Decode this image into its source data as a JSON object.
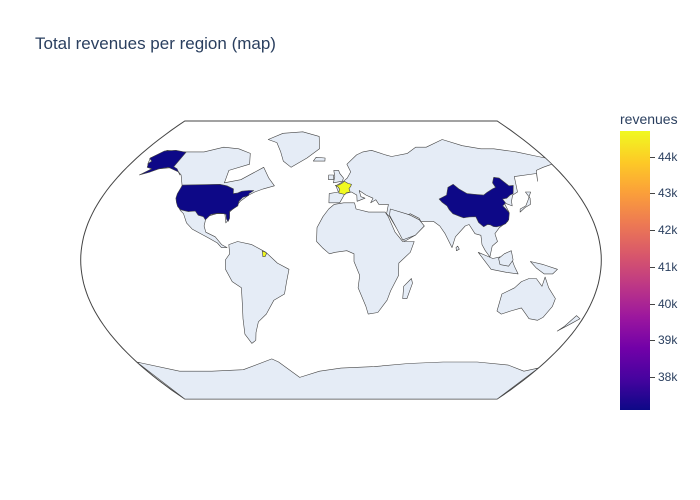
{
  "title": "Total revenues per region (map)",
  "chart_data": {
    "type": "choropleth",
    "title": "Total revenues per region (map)",
    "projection": "natural earth",
    "value_field": "revenues",
    "colorscale": "plasma",
    "colorscale_stops": [
      "#0d0887",
      "#46039f",
      "#7201a8",
      "#9c179e",
      "#bd3786",
      "#d8576b",
      "#ed7953",
      "#fb9f3a",
      "#fdca26",
      "#f0f921"
    ],
    "range": [
      37100,
      44700
    ],
    "regions": [
      {
        "region": "United States",
        "revenues": 37100
      },
      {
        "region": "China",
        "revenues": 37100
      },
      {
        "region": "France",
        "revenues": 44700
      },
      {
        "region": "French Guiana",
        "revenues": 44700
      }
    ],
    "colorbar": {
      "title": "revenues",
      "ticks": [
        38000,
        39000,
        40000,
        41000,
        42000,
        43000,
        44000
      ],
      "tick_labels": [
        "38k",
        "39k",
        "40k",
        "41k",
        "42k",
        "43k",
        "44k"
      ]
    },
    "land_color": "#e5ecf6",
    "border_color": "#444444"
  }
}
